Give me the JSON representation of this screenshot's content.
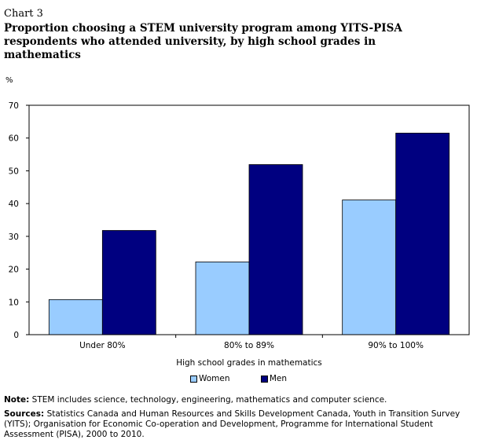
{
  "header": {
    "chart_number": "Chart 3",
    "title": "Proportion choosing a STEM university program among YITS-PISA respondents who attended university, by high school grades in mathematics"
  },
  "colors": {
    "women": "#99ccff",
    "men": "#000080"
  },
  "chart_data": {
    "type": "bar",
    "title": "Proportion choosing a STEM university program among YITS-PISA respondents who attended university, by high school grades in mathematics",
    "ylabel": "%",
    "xlabel": "High school grades in mathematics",
    "ylim": [
      0,
      70
    ],
    "yticks": [
      0,
      10,
      20,
      30,
      40,
      50,
      60,
      70
    ],
    "categories": [
      "Under 80%",
      "80% to 89%",
      "90% to 100%"
    ],
    "series": [
      {
        "name": "Women",
        "values": [
          10.7,
          22.2,
          41.1
        ]
      },
      {
        "name": "Men",
        "values": [
          31.8,
          51.9,
          61.5
        ]
      }
    ],
    "legend_position": "bottom",
    "grid": false
  },
  "notes": {
    "note_label": "Note:",
    "note_text": " STEM includes science, technology, engineering, mathematics and computer science.",
    "sources_label": "Sources:",
    "sources_text": " Statistics Canada and Human Resources and Skills Development Canada, Youth in Transition Survey (YITS); Organisation for Economic Co-operation and Development, Programme for International Student Assessment (PISA), 2000 to 2010."
  }
}
